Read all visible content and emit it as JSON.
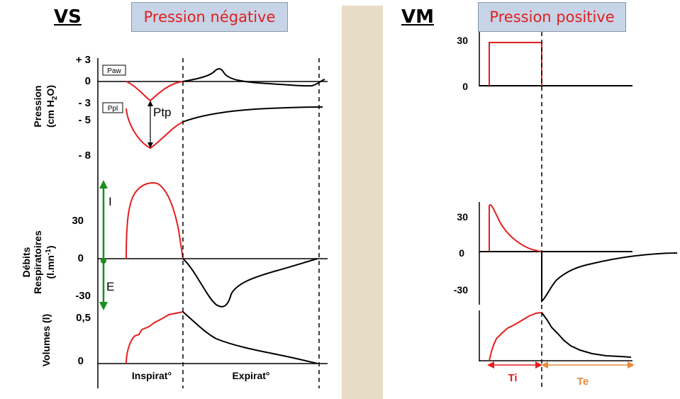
{
  "left_panel": {
    "header": "VS",
    "title": "Pression négative",
    "pressure": {
      "ylabel_line1": "Pression",
      "ylabel_line2_pre": "(cm H",
      "ylabel_line2_sub": "2",
      "ylabel_line2_post": "O)",
      "ticks": [
        "+ 3",
        "0",
        "- 3",
        "- 5",
        "- 8"
      ],
      "paw_label": "Paw",
      "ppl_label": "Ppl",
      "ptp_label": "Ptp"
    },
    "flow": {
      "ylabel_line1": "Débits",
      "ylabel_line2": "Respiratoires",
      "ylabel_line3": "(l.mn",
      "ylabel_line3_sup": "-1",
      "ylabel_line3_post": ")",
      "ticks": [
        "30",
        "0",
        "-30"
      ],
      "label_i": "I",
      "label_e": "E"
    },
    "volume": {
      "ylabel": "Volumes (l)",
      "ticks": [
        "0,5",
        "0"
      ]
    },
    "phase_inspi": "Inspirat°",
    "phase_expi": "Expirat°"
  },
  "right_panel": {
    "header": "VM",
    "title": "Pression positive",
    "pressure_ticks": [
      "30",
      "0"
    ],
    "flow_ticks": [
      "30",
      "0",
      "-30"
    ],
    "ti_label": "Ti",
    "te_label": "Te"
  },
  "colors": {
    "curve_inspi": "#e41e1e",
    "curve_expi": "#000000",
    "arrow_green": "#1e8c1e",
    "ti_color": "#e41e1e",
    "te_color": "#e88a3a",
    "title_bg": "#c7d3e6",
    "separator": "#e7dcc5"
  }
}
